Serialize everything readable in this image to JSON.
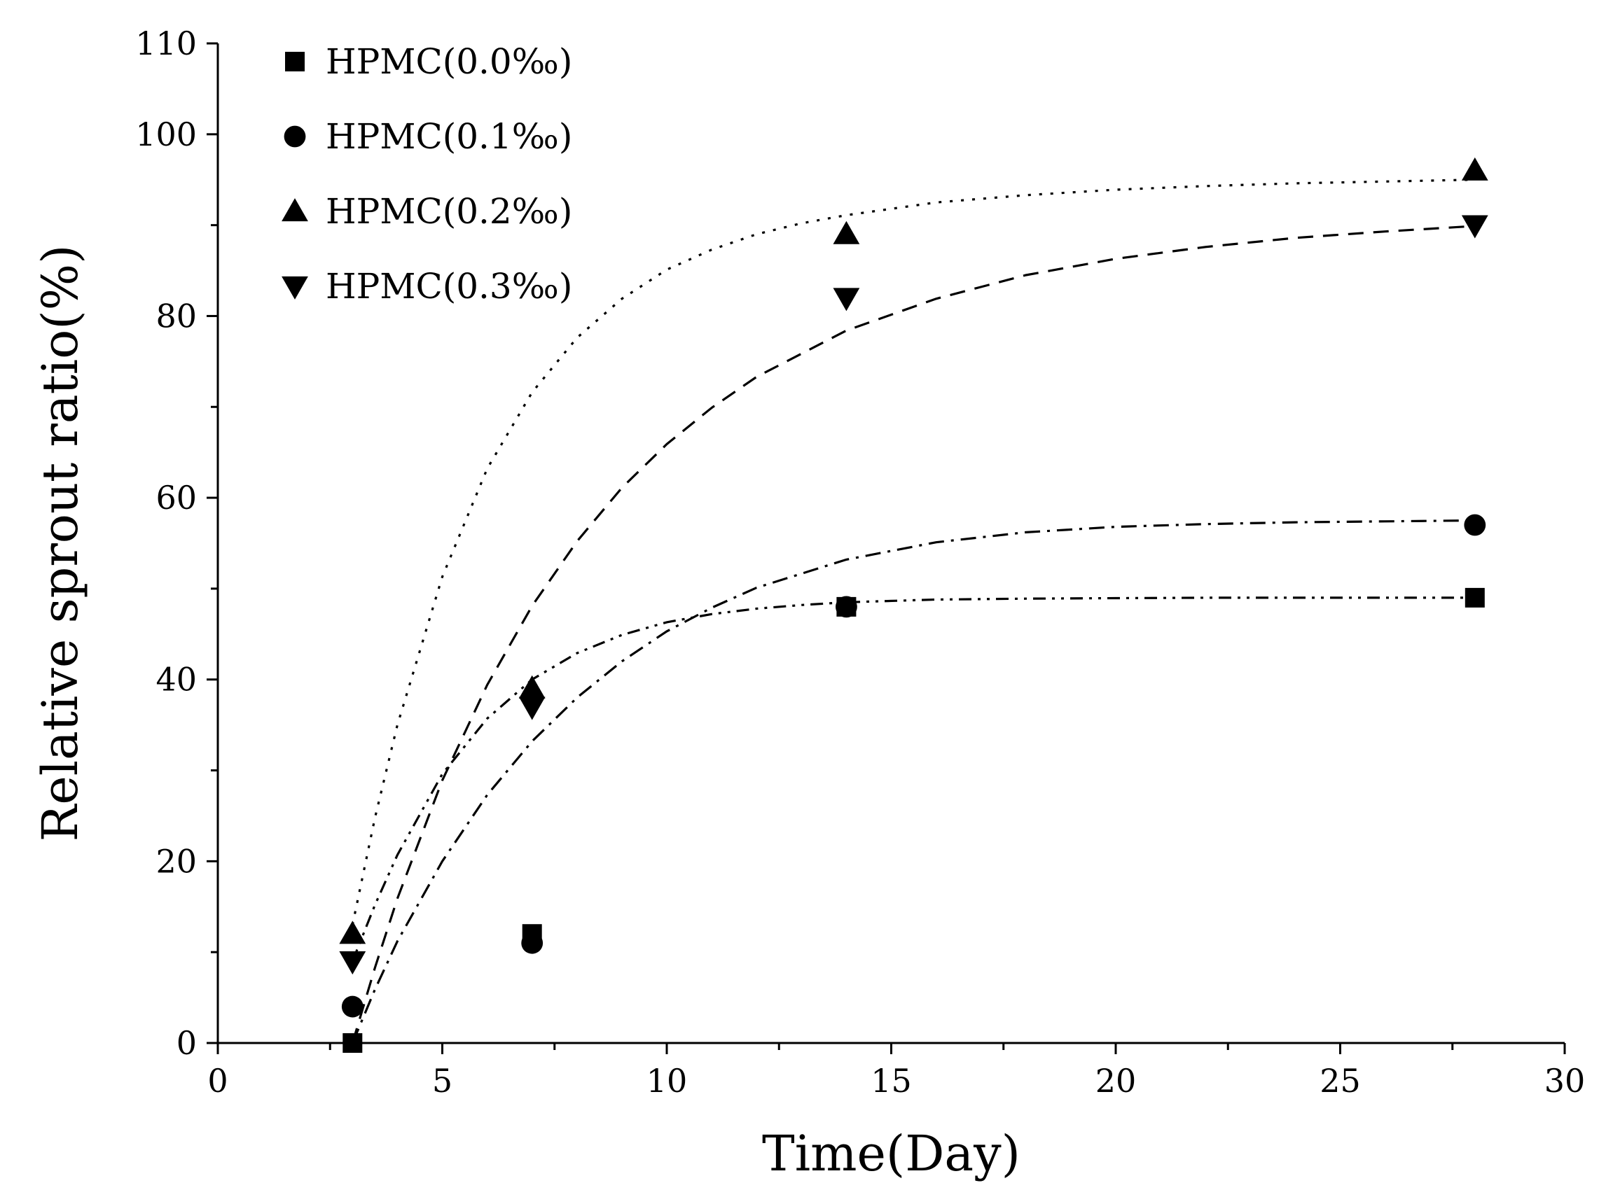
{
  "chart_data": {
    "type": "scatter",
    "title": "",
    "xlabel": "Time(Day)",
    "ylabel": "Relative sprout ratio(%)",
    "xlim": [
      0,
      30
    ],
    "ylim": [
      0,
      110
    ],
    "x_ticks": [
      0,
      5,
      10,
      15,
      20,
      25,
      30
    ],
    "y_ticks": [
      0,
      20,
      40,
      60,
      80,
      100,
      110
    ],
    "x_tick_labels": [
      "0",
      "5",
      "10",
      "15",
      "20",
      "25",
      "30"
    ],
    "y_tick_labels": [
      "0",
      "20",
      "40",
      "60",
      "80",
      "100",
      "110"
    ],
    "grid": false,
    "legend_position": "top-left",
    "series": [
      {
        "name": "HPMC(0.0‰)",
        "marker": "square",
        "x": [
          3,
          7,
          14,
          28
        ],
        "y": [
          0,
          12,
          48,
          49
        ],
        "fit_style": "dash-dot-dot",
        "fit_x": [
          3,
          3.5,
          4,
          5,
          6,
          7,
          8,
          9,
          10,
          11,
          12,
          13,
          14,
          16,
          18,
          20,
          22,
          24,
          26,
          28
        ],
        "fit_y": [
          9,
          15.2,
          20.7,
          29.6,
          35.7,
          40.0,
          42.9,
          44.9,
          46.3,
          47.2,
          47.8,
          48.2,
          48.5,
          48.8,
          48.9,
          48.95,
          49,
          49,
          49,
          49
        ]
      },
      {
        "name": "HPMC(0.1‰)",
        "marker": "circle",
        "x": [
          3,
          7,
          14,
          28
        ],
        "y": [
          4,
          11,
          48,
          57
        ],
        "fit_style": "dash-dot",
        "fit_x": [
          3,
          3.5,
          4,
          5,
          6,
          7,
          8,
          9,
          10,
          11,
          12,
          14,
          16,
          18,
          20,
          22,
          24,
          26,
          28
        ],
        "fit_y": [
          0,
          5.9,
          11.2,
          20.0,
          27.3,
          33.2,
          38.0,
          42.0,
          45.3,
          47.9,
          50.1,
          53.2,
          55.1,
          56.2,
          56.8,
          57.1,
          57.3,
          57.4,
          57.5
        ]
      },
      {
        "name": "HPMC(0.2‰)",
        "marker": "triangle-up",
        "x": [
          3,
          7,
          14,
          28
        ],
        "y": [
          12,
          39,
          89,
          96
        ],
        "fit_style": "dotted",
        "fit_x": [
          3,
          3.5,
          4,
          5,
          6,
          7,
          8,
          9,
          10,
          11,
          12,
          13,
          14,
          16,
          18,
          20,
          22,
          24,
          26,
          28
        ],
        "fit_y": [
          13,
          24.8,
          35.0,
          51.3,
          63.2,
          71.6,
          77.6,
          81.9,
          85.1,
          87.3,
          89.0,
          90.2,
          91.1,
          92.5,
          93.3,
          93.9,
          94.3,
          94.6,
          94.8,
          95.0
        ]
      },
      {
        "name": "HPMC(0.3‰)",
        "marker": "triangle-down",
        "x": [
          3,
          7,
          14,
          28
        ],
        "y": [
          9,
          37,
          82,
          90
        ],
        "fit_style": "dashed",
        "fit_x": [
          3,
          3.5,
          4,
          5,
          6,
          7,
          8,
          9,
          10,
          11,
          12,
          14,
          16,
          18,
          20,
          22,
          24,
          26,
          28
        ],
        "fit_y": [
          0,
          8.3,
          15.9,
          28.9,
          39.4,
          48.1,
          55.2,
          61.1,
          65.9,
          69.9,
          73.3,
          78.4,
          81.9,
          84.5,
          86.3,
          87.6,
          88.6,
          89.3,
          89.9
        ]
      }
    ]
  }
}
